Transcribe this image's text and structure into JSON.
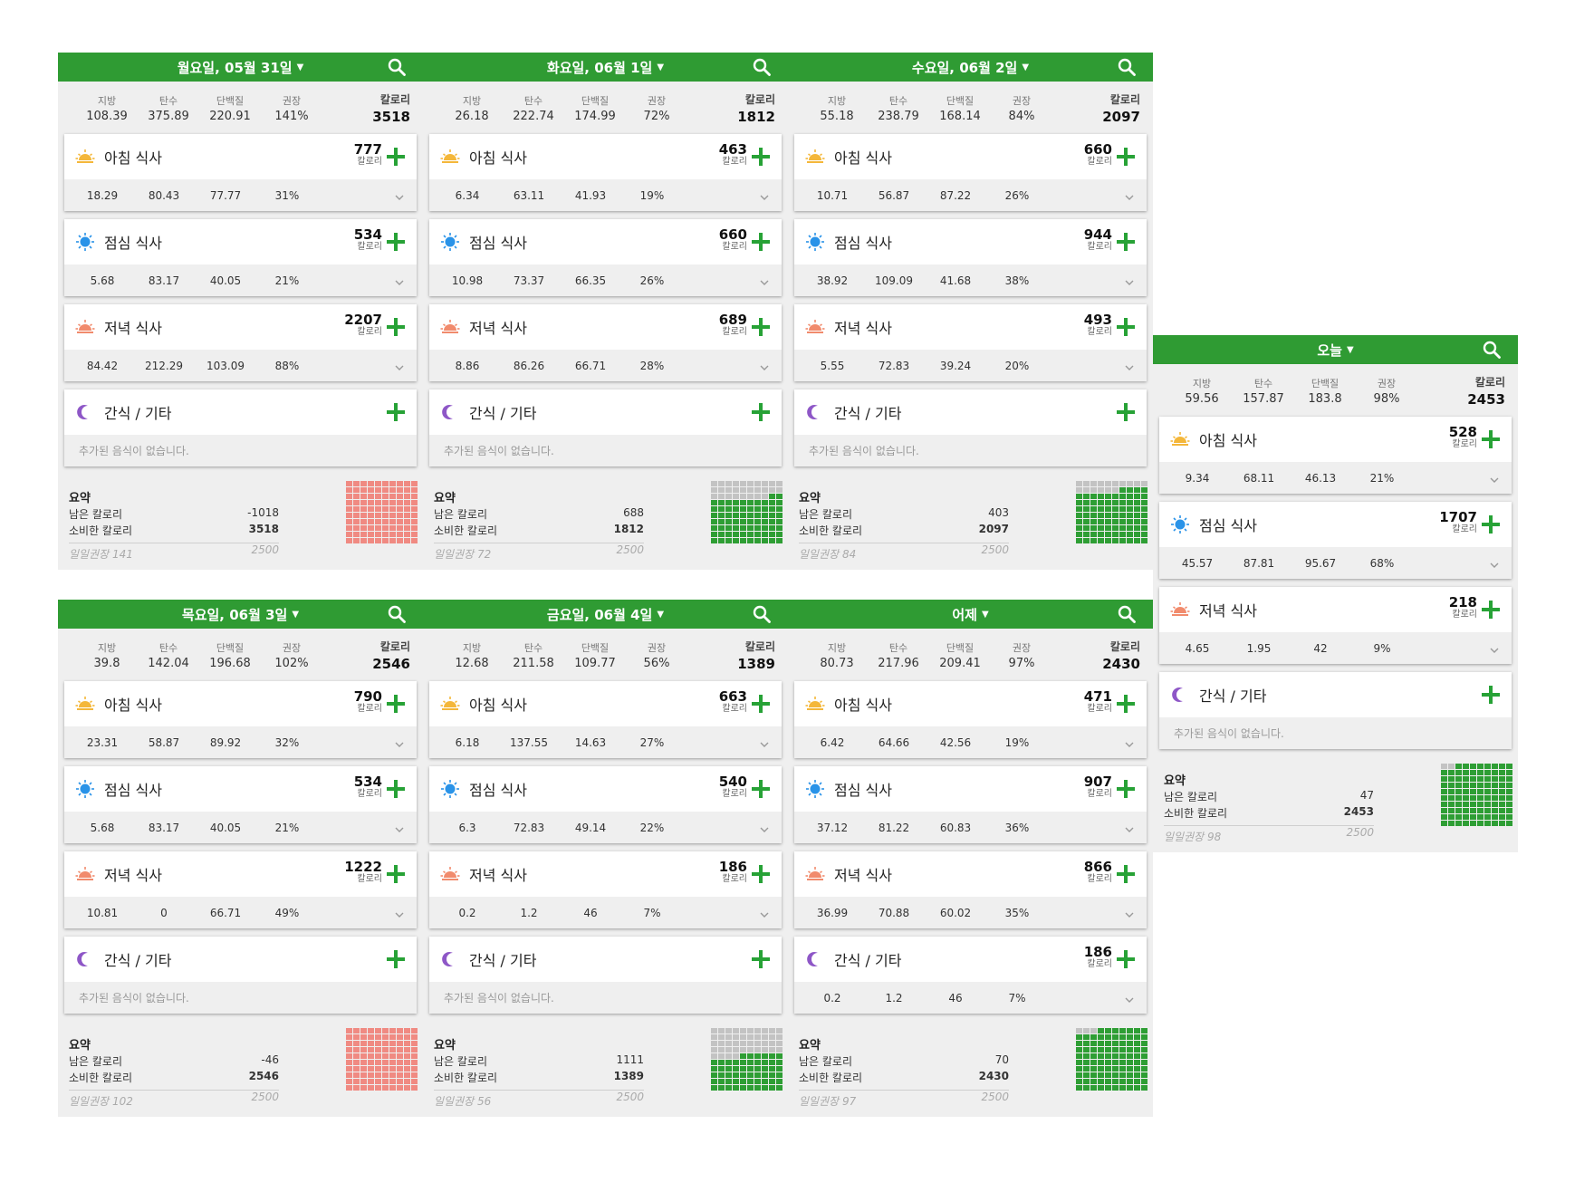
{
  "labels": {
    "fat": "지방",
    "carbs": "탄수",
    "protein": "단백질",
    "recommended": "권장",
    "calories": "칼로리",
    "cal_unit": "칼로리",
    "no_food": "추가된 음식이 없습니다.",
    "summary_title": "요약",
    "remaining": "남은 칼로리",
    "consumed": "소비한 칼로리",
    "daily_rec": "일일권장"
  },
  "colors": {
    "header": "#2f9b33",
    "plus": "#27a236",
    "over": "#f08a82",
    "under_filled": "#2e9e34",
    "empty": "#c3c3c3"
  },
  "days": [
    {
      "title": "월요일, 05월 31일",
      "totals": {
        "fat": "108.39",
        "carbs": "375.89",
        "protein": "220.91",
        "pct": "141%",
        "cal": "3518"
      },
      "meals": [
        {
          "name": "아침 식사",
          "icon": "sunrise-icon",
          "cal": "777",
          "fat": "18.29",
          "carbs": "80.43",
          "protein": "77.77",
          "pct": "31%"
        },
        {
          "name": "점심 식사",
          "icon": "sun-icon",
          "cal": "534",
          "fat": "5.68",
          "carbs": "83.17",
          "protein": "40.05",
          "pct": "21%"
        },
        {
          "name": "저녁 식사",
          "icon": "sunset-icon",
          "cal": "2207",
          "fat": "84.42",
          "carbs": "212.29",
          "protein": "103.09",
          "pct": "88%"
        },
        {
          "name": "간식 / 기타",
          "icon": "moon-icon",
          "cal": "",
          "empty": true
        }
      ],
      "summary": {
        "remaining": "-1018",
        "consumed": "3518",
        "rec_pct": "141",
        "goal": "2500"
      },
      "grid": {
        "fill_fraction": 1.0,
        "over": true
      }
    },
    {
      "title": "화요일, 06월 1일",
      "totals": {
        "fat": "26.18",
        "carbs": "222.74",
        "protein": "174.99",
        "pct": "72%",
        "cal": "1812"
      },
      "meals": [
        {
          "name": "아침 식사",
          "icon": "sunrise-icon",
          "cal": "463",
          "fat": "6.34",
          "carbs": "63.11",
          "protein": "41.93",
          "pct": "19%"
        },
        {
          "name": "점심 식사",
          "icon": "sun-icon",
          "cal": "660",
          "fat": "10.98",
          "carbs": "73.37",
          "protein": "66.35",
          "pct": "26%"
        },
        {
          "name": "저녁 식사",
          "icon": "sunset-icon",
          "cal": "689",
          "fat": "8.86",
          "carbs": "86.26",
          "protein": "66.71",
          "pct": "28%"
        },
        {
          "name": "간식 / 기타",
          "icon": "moon-icon",
          "cal": "",
          "empty": true
        }
      ],
      "summary": {
        "remaining": "688",
        "consumed": "1812",
        "rec_pct": "72",
        "goal": "2500"
      },
      "grid": {
        "fill_fraction": 0.72,
        "over": false
      }
    },
    {
      "title": "수요일, 06월 2일",
      "totals": {
        "fat": "55.18",
        "carbs": "238.79",
        "protein": "168.14",
        "pct": "84%",
        "cal": "2097"
      },
      "meals": [
        {
          "name": "아침 식사",
          "icon": "sunrise-icon",
          "cal": "660",
          "fat": "10.71",
          "carbs": "56.87",
          "protein": "87.22",
          "pct": "26%"
        },
        {
          "name": "점심 식사",
          "icon": "sun-icon",
          "cal": "944",
          "fat": "38.92",
          "carbs": "109.09",
          "protein": "41.68",
          "pct": "38%"
        },
        {
          "name": "저녁 식사",
          "icon": "sunset-icon",
          "cal": "493",
          "fat": "5.55",
          "carbs": "72.83",
          "protein": "39.24",
          "pct": "20%"
        },
        {
          "name": "간식 / 기타",
          "icon": "moon-icon",
          "cal": "",
          "empty": true
        }
      ],
      "summary": {
        "remaining": "403",
        "consumed": "2097",
        "rec_pct": "84",
        "goal": "2500"
      },
      "grid": {
        "fill_fraction": 0.84,
        "over": false
      }
    },
    {
      "title": "오늘",
      "totals": {
        "fat": "59.56",
        "carbs": "157.87",
        "protein": "183.8",
        "pct": "98%",
        "cal": "2453"
      },
      "meals": [
        {
          "name": "아침 식사",
          "icon": "sunrise-icon",
          "cal": "528",
          "fat": "9.34",
          "carbs": "68.11",
          "protein": "46.13",
          "pct": "21%"
        },
        {
          "name": "점심 식사",
          "icon": "sun-icon",
          "cal": "1707",
          "fat": "45.57",
          "carbs": "87.81",
          "protein": "95.67",
          "pct": "68%"
        },
        {
          "name": "저녁 식사",
          "icon": "sunset-icon",
          "cal": "218",
          "fat": "4.65",
          "carbs": "1.95",
          "protein": "42",
          "pct": "9%"
        },
        {
          "name": "간식 / 기타",
          "icon": "moon-icon",
          "cal": "",
          "empty": true
        }
      ],
      "summary": {
        "remaining": "47",
        "consumed": "2453",
        "rec_pct": "98",
        "goal": "2500"
      },
      "grid": {
        "fill_fraction": 0.98,
        "over": false
      }
    },
    {
      "title": "목요일, 06월 3일",
      "totals": {
        "fat": "39.8",
        "carbs": "142.04",
        "protein": "196.68",
        "pct": "102%",
        "cal": "2546"
      },
      "meals": [
        {
          "name": "아침 식사",
          "icon": "sunrise-icon",
          "cal": "790",
          "fat": "23.31",
          "carbs": "58.87",
          "protein": "89.92",
          "pct": "32%"
        },
        {
          "name": "점심 식사",
          "icon": "sun-icon",
          "cal": "534",
          "fat": "5.68",
          "carbs": "83.17",
          "protein": "40.05",
          "pct": "21%"
        },
        {
          "name": "저녁 식사",
          "icon": "sunset-icon",
          "cal": "1222",
          "fat": "10.81",
          "carbs": "0",
          "protein": "66.71",
          "pct": "49%"
        },
        {
          "name": "간식 / 기타",
          "icon": "moon-icon",
          "cal": "",
          "empty": true
        }
      ],
      "summary": {
        "remaining": "-46",
        "consumed": "2546",
        "rec_pct": "102",
        "goal": "2500"
      },
      "grid": {
        "fill_fraction": 1.0,
        "over": true
      }
    },
    {
      "title": "금요일, 06월 4일",
      "totals": {
        "fat": "12.68",
        "carbs": "211.58",
        "protein": "109.77",
        "pct": "56%",
        "cal": "1389"
      },
      "meals": [
        {
          "name": "아침 식사",
          "icon": "sunrise-icon",
          "cal": "663",
          "fat": "6.18",
          "carbs": "137.55",
          "protein": "14.63",
          "pct": "27%"
        },
        {
          "name": "점심 식사",
          "icon": "sun-icon",
          "cal": "540",
          "fat": "6.3",
          "carbs": "72.83",
          "protein": "49.14",
          "pct": "22%"
        },
        {
          "name": "저녁 식사",
          "icon": "sunset-icon",
          "cal": "186",
          "fat": "0.2",
          "carbs": "1.2",
          "protein": "46",
          "pct": "7%"
        },
        {
          "name": "간식 / 기타",
          "icon": "moon-icon",
          "cal": "",
          "empty": true
        }
      ],
      "summary": {
        "remaining": "1111",
        "consumed": "1389",
        "rec_pct": "56",
        "goal": "2500"
      },
      "grid": {
        "fill_fraction": 0.56,
        "over": false
      }
    },
    {
      "title": "어제",
      "totals": {
        "fat": "80.73",
        "carbs": "217.96",
        "protein": "209.41",
        "pct": "97%",
        "cal": "2430"
      },
      "meals": [
        {
          "name": "아침 식사",
          "icon": "sunrise-icon",
          "cal": "471",
          "fat": "6.42",
          "carbs": "64.66",
          "protein": "42.56",
          "pct": "19%"
        },
        {
          "name": "점심 식사",
          "icon": "sun-icon",
          "cal": "907",
          "fat": "37.12",
          "carbs": "81.22",
          "protein": "60.83",
          "pct": "36%"
        },
        {
          "name": "저녁 식사",
          "icon": "sunset-icon",
          "cal": "866",
          "fat": "36.99",
          "carbs": "70.88",
          "protein": "60.02",
          "pct": "35%"
        },
        {
          "name": "간식 / 기타",
          "icon": "moon-icon",
          "cal": "186",
          "fat": "0.2",
          "carbs": "1.2",
          "protein": "46",
          "pct": "7%"
        }
      ],
      "summary": {
        "remaining": "70",
        "consumed": "2430",
        "rec_pct": "97",
        "goal": "2500"
      },
      "grid": {
        "fill_fraction": 0.97,
        "over": false
      }
    }
  ]
}
